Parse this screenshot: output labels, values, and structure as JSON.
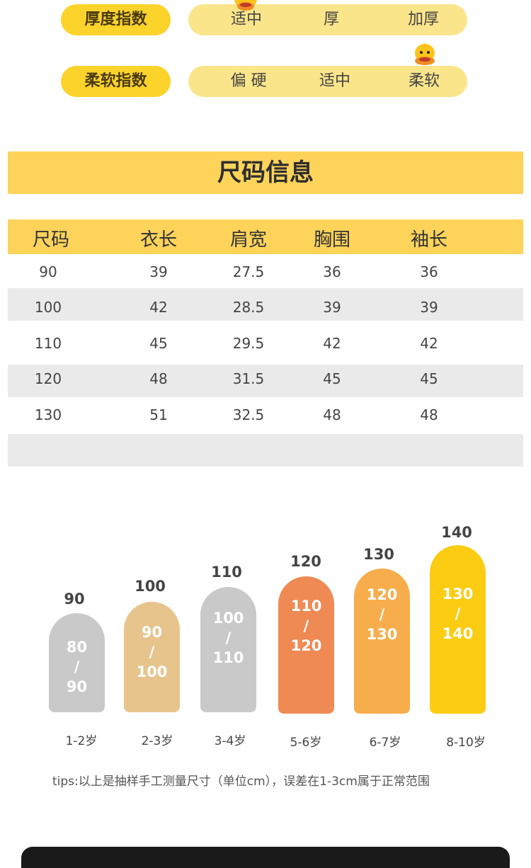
{
  "indices": {
    "thickness": {
      "label": "厚度指数",
      "options": [
        "适中",
        "厚",
        "加厚"
      ],
      "selected": "适中"
    },
    "softness": {
      "label": "柔软指数",
      "options": [
        "偏 硬",
        "适中",
        "柔软"
      ],
      "selected": "柔软"
    }
  },
  "size_info": {
    "title": "尺码信息",
    "columns": [
      "尺码",
      "衣长",
      "肩宽",
      "胸围",
      "袖长"
    ],
    "rows": [
      [
        "90",
        "39",
        "27.5",
        "36",
        "36"
      ],
      [
        "100",
        "42",
        "28.5",
        "39",
        "39"
      ],
      [
        "110",
        "45",
        "29.5",
        "42",
        "42"
      ],
      [
        "120",
        "48",
        "31.5",
        "45",
        "45"
      ],
      [
        "130",
        "51",
        "32.5",
        "48",
        "48"
      ]
    ]
  },
  "size_chart": {
    "items": [
      {
        "top": "90",
        "line1": "80",
        "sep": "/",
        "line2": "90",
        "age": "1-2岁",
        "color": "#c9c9c9"
      },
      {
        "top": "100",
        "line1": "90",
        "sep": "/",
        "line2": "100",
        "age": "2-3岁",
        "color": "#e8c48d"
      },
      {
        "top": "110",
        "line1": "100",
        "sep": "/",
        "line2": "110",
        "age": "3-4岁",
        "color": "#c9c9c9"
      },
      {
        "top": "120",
        "line1": "110",
        "sep": "/",
        "line2": "120",
        "age": "5-6岁",
        "color": "#ef8a55"
      },
      {
        "top": "130",
        "line1": "120",
        "sep": "/",
        "line2": "130",
        "age": "6-7岁",
        "color": "#f8ad4c"
      },
      {
        "top": "140",
        "line1": "130",
        "sep": "/",
        "line2": "140",
        "age": "8-10岁",
        "color": "#fbcc12"
      }
    ]
  },
  "tips": "tips:以上是抽样手工测量尺寸（单位cm），误差在1-3cm属于正常范围"
}
